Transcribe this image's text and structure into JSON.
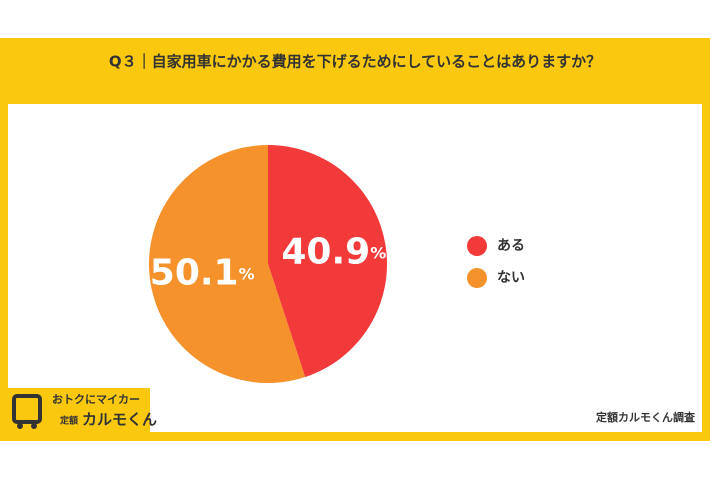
{
  "chart_data": {
    "type": "pie",
    "title": "Q３｜自家用車にかかる費用を下げるためにしていることはありますか？",
    "categories": [
      "ある",
      "ない"
    ],
    "values": [
      40.9,
      50.1
    ],
    "value_unit": "%",
    "colors": [
      "#f33a3a",
      "#f5922b"
    ],
    "legend": "right",
    "source": "定額カルモくん調査",
    "logo": {
      "line1": "おトクにマイカー",
      "line2_small": "定額",
      "line2": "カルモくん"
    }
  }
}
